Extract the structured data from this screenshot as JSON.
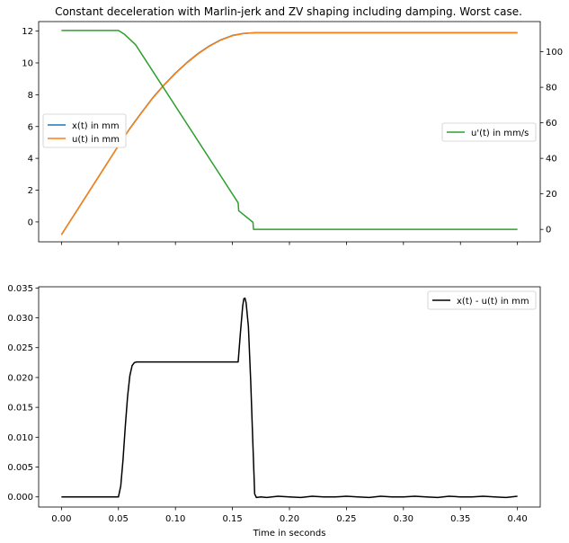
{
  "chart_data": [
    {
      "type": "line",
      "title": "Constant deceleration with Marlin-jerk and ZV shaping including damping. Worst case.",
      "xlim": [
        -0.02,
        0.42
      ],
      "ylim_left": [
        -1.25,
        12.6
      ],
      "ylim_right": [
        -7,
        117
      ],
      "x_ticks": [
        0.0,
        0.05,
        0.1,
        0.15,
        0.2,
        0.25,
        0.3,
        0.35,
        0.4
      ],
      "y_ticks_left": [
        0,
        2,
        4,
        6,
        8,
        10,
        12
      ],
      "y_ticks_right": [
        0,
        20,
        40,
        60,
        80,
        100
      ],
      "show_x_tick_labels": false,
      "grid": false,
      "legends": [
        {
          "placement": "center-left",
          "entries": [
            "x(t)  in mm",
            "u(t)  in mm"
          ]
        },
        {
          "placement": "center-right",
          "entries": [
            "u'(t)  in mm/s"
          ]
        }
      ],
      "colors": {
        "x": "#1f77b4",
        "u": "#ff7f0e",
        "du": "#2ca02c"
      },
      "series": [
        {
          "name": "x(t)  in mm",
          "axis": "left",
          "x": [
            0.0,
            0.02,
            0.04,
            0.05,
            0.06,
            0.07,
            0.08,
            0.09,
            0.1,
            0.11,
            0.12,
            0.13,
            0.14,
            0.15,
            0.16,
            0.17,
            0.2,
            0.25,
            0.3,
            0.35,
            0.4
          ],
          "values": [
            -0.8,
            1.44,
            3.68,
            4.8,
            5.88,
            6.86,
            7.8,
            8.62,
            9.36,
            10.02,
            10.6,
            11.08,
            11.46,
            11.73,
            11.86,
            11.9,
            11.9,
            11.9,
            11.9,
            11.9,
            11.9
          ]
        },
        {
          "name": "u(t)  in mm",
          "axis": "left",
          "x": [
            0.0,
            0.02,
            0.04,
            0.05,
            0.06,
            0.07,
            0.08,
            0.09,
            0.1,
            0.11,
            0.12,
            0.13,
            0.14,
            0.15,
            0.16,
            0.17,
            0.2,
            0.25,
            0.3,
            0.35,
            0.4
          ],
          "values": [
            -0.8,
            1.44,
            3.68,
            4.8,
            5.86,
            6.84,
            7.78,
            8.6,
            9.34,
            10.0,
            10.58,
            11.06,
            11.44,
            11.71,
            11.85,
            11.9,
            11.9,
            11.9,
            11.9,
            11.9,
            11.9
          ]
        },
        {
          "name": "u'(t)  in mm/s",
          "axis": "right",
          "x": [
            0.0,
            0.05,
            0.055,
            0.065,
            0.155,
            0.1555,
            0.168,
            0.1685,
            0.2,
            0.25,
            0.3,
            0.35,
            0.4
          ],
          "values": [
            112,
            112,
            110,
            104,
            15,
            10.5,
            4,
            0,
            0,
            0,
            0,
            0,
            0
          ]
        }
      ]
    },
    {
      "type": "line",
      "xlabel": "Time in seconds",
      "xlim": [
        -0.02,
        0.42
      ],
      "ylim": [
        -0.0017,
        0.0352
      ],
      "x_ticks": [
        "0.00",
        "0.05",
        "0.10",
        "0.15",
        "0.20",
        "0.25",
        "0.30",
        "0.35",
        "0.40"
      ],
      "y_ticks": [
        "0.000",
        "0.005",
        "0.010",
        "0.015",
        "0.020",
        "0.025",
        "0.030",
        "0.035"
      ],
      "grid": false,
      "legends": [
        {
          "placement": "top-right",
          "entries": [
            "x(t) - u(t)  in mm"
          ]
        }
      ],
      "colors": {
        "diff": "#000000"
      },
      "series": [
        {
          "name": "x(t) - u(t)  in mm",
          "x": [
            0.0,
            0.05,
            0.052,
            0.054,
            0.056,
            0.058,
            0.06,
            0.062,
            0.064,
            0.066,
            0.07,
            0.1,
            0.15,
            0.155,
            0.157,
            0.159,
            0.16,
            0.161,
            0.162,
            0.164,
            0.166,
            0.168,
            0.1695,
            0.171,
            0.175,
            0.18,
            0.19,
            0.2,
            0.21,
            0.22,
            0.23,
            0.24,
            0.25,
            0.26,
            0.27,
            0.28,
            0.29,
            0.3,
            0.31,
            0.32,
            0.33,
            0.34,
            0.35,
            0.36,
            0.37,
            0.38,
            0.39,
            0.4
          ],
          "values": [
            0.0,
            0.0,
            0.0018,
            0.0062,
            0.0118,
            0.0168,
            0.0203,
            0.022,
            0.0225,
            0.0226,
            0.0226,
            0.0226,
            0.0226,
            0.0226,
            0.0275,
            0.032,
            0.0332,
            0.0333,
            0.0325,
            0.0285,
            0.0195,
            0.0085,
            0.0005,
            -0.0001,
            0.0,
            -0.0001,
            0.0001,
            0.0,
            -0.0001,
            0.0001,
            0.0,
            0.0,
            0.0001,
            0.0,
            -0.0001,
            0.0001,
            0.0,
            0.0,
            0.0001,
            0.0,
            -0.0001,
            0.0001,
            0.0,
            0.0,
            0.0001,
            0.0,
            -0.0001,
            0.0001
          ]
        }
      ]
    }
  ]
}
